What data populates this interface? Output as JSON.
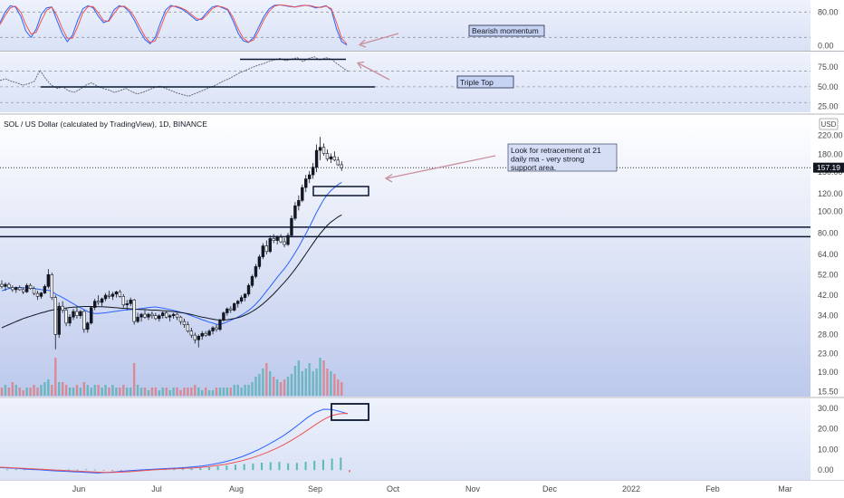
{
  "chart_data": [
    {
      "panel": "stochastic_rsi",
      "type": "line",
      "y_axis_ticks": [
        "80.00",
        "0.00"
      ],
      "levels": [
        80,
        20
      ],
      "ylim": [
        -5,
        100
      ],
      "series": [
        {
          "color": "#2962ff",
          "values": [
            55,
            80,
            95,
            92,
            70,
            35,
            20,
            40,
            75,
            90,
            92,
            60,
            30,
            10,
            25,
            60,
            88,
            95,
            90,
            70,
            55,
            60,
            85,
            95,
            92,
            80,
            60,
            35,
            15,
            5,
            20,
            55,
            85,
            96,
            92,
            88,
            80,
            70,
            60,
            65,
            80,
            92,
            95,
            90,
            85,
            60,
            30,
            12,
            8,
            20,
            45,
            70,
            88,
            96,
            97,
            95,
            93,
            92,
            95,
            96,
            94,
            90,
            92,
            95,
            85,
            40,
            10,
            2
          ]
        },
        {
          "color": "#ef5350",
          "values": [
            50,
            72,
            90,
            94,
            80,
            50,
            28,
            32,
            60,
            84,
            92,
            72,
            42,
            18,
            18,
            45,
            78,
            93,
            93,
            78,
            60,
            58,
            76,
            92,
            94,
            85,
            68,
            45,
            22,
            8,
            12,
            42,
            75,
            93,
            94,
            90,
            84,
            74,
            64,
            62,
            74,
            88,
            94,
            92,
            87,
            68,
            40,
            18,
            9,
            14,
            36,
            62,
            82,
            94,
            97,
            96,
            94,
            92,
            94,
            96,
            95,
            92,
            91,
            94,
            88,
            55,
            18,
            4
          ]
        }
      ],
      "annotation": "Bearish momentum"
    },
    {
      "panel": "rsi",
      "type": "line",
      "y_axis_ticks": [
        "75.00",
        "50.00",
        "25.00"
      ],
      "levels": [
        70,
        50,
        30
      ],
      "ylim": [
        20,
        90
      ],
      "series": [
        {
          "color": "#5d606b",
          "values": [
            58,
            60,
            57,
            55,
            52,
            54,
            57,
            71,
            60,
            52,
            48,
            50,
            45,
            43,
            47,
            52,
            55,
            51,
            48,
            46,
            43,
            45,
            48,
            44,
            41,
            43,
            46,
            49,
            51,
            48,
            45,
            42,
            40,
            38,
            41,
            44,
            47,
            50,
            53,
            57,
            60,
            64,
            68,
            71,
            74,
            77,
            79,
            82,
            84,
            86,
            83,
            85,
            87,
            82,
            86,
            88,
            84,
            87,
            85,
            79,
            74,
            69
          ]
        }
      ],
      "annotation": "Triple Top"
    },
    {
      "panel": "price",
      "type": "candlestick",
      "title": "SOL / US Dollar (calculated by TradingView), 1D, BINANCE",
      "scale": "log",
      "ylim": [
        15,
        240
      ],
      "y_axis_ticks": [
        "220.00",
        "180.00",
        "150.00",
        "120.00",
        "100.00",
        "80.00",
        "64.00",
        "52.00",
        "42.00",
        "34.00",
        "28.00",
        "23.00",
        "19.00",
        "15.50"
      ],
      "currency_label": "USD",
      "last_price": "157.19",
      "last_price_color": "#131722",
      "horizontal_levels": [
        85,
        77
      ],
      "annotation": "Look for retracement at 21 daily ma - very strong support area.",
      "ohlc": [
        [
          47,
          49,
          45,
          46
        ],
        [
          46,
          48,
          44,
          47
        ],
        [
          47,
          48,
          45,
          45.5
        ],
        [
          45.5,
          46.5,
          43.5,
          44.5
        ],
        [
          44.5,
          46,
          43,
          45.5
        ],
        [
          45.5,
          46.5,
          44,
          44.5
        ],
        [
          44.5,
          45.5,
          42.5,
          43.5
        ],
        [
          43.5,
          47.5,
          43,
          46.5
        ],
        [
          46.5,
          47.5,
          44.5,
          45
        ],
        [
          45,
          46,
          42,
          42.8
        ],
        [
          42.8,
          44,
          40,
          41.5
        ],
        [
          41.5,
          43.5,
          40.5,
          43
        ],
        [
          43,
          47,
          42.5,
          46
        ],
        [
          46,
          55,
          45,
          52
        ],
        [
          52,
          53,
          40,
          41
        ],
        [
          41,
          42,
          24,
          28
        ],
        [
          28,
          39,
          27,
          37.5
        ],
        [
          37.5,
          39.5,
          35,
          36
        ],
        [
          36,
          37,
          30.5,
          31.5
        ],
        [
          31.5,
          34.5,
          30.5,
          33.5
        ],
        [
          33.5,
          36.5,
          32.5,
          35.5
        ],
        [
          35.5,
          37,
          33,
          34
        ],
        [
          34,
          36,
          33,
          35.5
        ],
        [
          35.5,
          36,
          28.5,
          29.5
        ],
        [
          29.5,
          32,
          28.5,
          31.5
        ],
        [
          31.5,
          37.5,
          31,
          37
        ],
        [
          37,
          40.5,
          36,
          39.5
        ],
        [
          39.5,
          42,
          38,
          39
        ],
        [
          39,
          41,
          37.5,
          40.5
        ],
        [
          40.5,
          43,
          39.5,
          42
        ],
        [
          42,
          44,
          40.5,
          41.5
        ],
        [
          41.5,
          43.5,
          40,
          42.5
        ],
        [
          42.5,
          44,
          41,
          43.5
        ],
        [
          43.5,
          44.5,
          41,
          41.5
        ],
        [
          41.5,
          42.5,
          37,
          38
        ],
        [
          38,
          40,
          36,
          38.5
        ],
        [
          38.5,
          41,
          37.5,
          40
        ],
        [
          40,
          40.5,
          31,
          32
        ],
        [
          32,
          35,
          31.5,
          33.5
        ],
        [
          33.5,
          35,
          32,
          34.5
        ],
        [
          34.5,
          36,
          33,
          33.5
        ],
        [
          33.5,
          35,
          32.5,
          34.5
        ],
        [
          34.5,
          35.5,
          33,
          34
        ],
        [
          34,
          35,
          32.5,
          33
        ],
        [
          33,
          34.5,
          32,
          34
        ],
        [
          34,
          35.5,
          33,
          35
        ],
        [
          35,
          35.5,
          33,
          33.5
        ],
        [
          33.5,
          34.5,
          32,
          34
        ],
        [
          34,
          35,
          33,
          34.5
        ],
        [
          34.5,
          35,
          32.5,
          33.5
        ],
        [
          33.5,
          34,
          31,
          32
        ],
        [
          32,
          33,
          30,
          31
        ],
        [
          31,
          32,
          28.5,
          29
        ],
        [
          29,
          30,
          27,
          27.8
        ],
        [
          27.8,
          28.5,
          25.5,
          26.5
        ],
        [
          26.5,
          28,
          24.5,
          27.5
        ],
        [
          27.5,
          29,
          26.5,
          28.3
        ],
        [
          28.3,
          29,
          27.3,
          27.8
        ],
        [
          27.8,
          29.5,
          27.5,
          29
        ],
        [
          29,
          30.5,
          28,
          30
        ],
        [
          30,
          31,
          28.8,
          29.5
        ],
        [
          29.5,
          33,
          29,
          32.5
        ],
        [
          32.5,
          35.5,
          32,
          35
        ],
        [
          35,
          37,
          34,
          36.5
        ],
        [
          36.5,
          37.5,
          35,
          36
        ],
        [
          36,
          39,
          35.5,
          38.5
        ],
        [
          38.5,
          40,
          37,
          39.5
        ],
        [
          39.5,
          42,
          38.5,
          41
        ],
        [
          41,
          43,
          39.5,
          42.5
        ],
        [
          42.5,
          47.5,
          41.5,
          46.5
        ],
        [
          46.5,
          52,
          45.5,
          51
        ],
        [
          51,
          58,
          50,
          56.5
        ],
        [
          56.5,
          64,
          55,
          62.5
        ],
        [
          62.5,
          72,
          61,
          70
        ],
        [
          70,
          74,
          64,
          66
        ],
        [
          66,
          78,
          65,
          75.5
        ],
        [
          75.5,
          79,
          72,
          74
        ],
        [
          74,
          78,
          71,
          76.5
        ],
        [
          76.5,
          79,
          72,
          73
        ],
        [
          73,
          76,
          69,
          71
        ],
        [
          71,
          80,
          70,
          78
        ],
        [
          78,
          96,
          77,
          93
        ],
        [
          93,
          110,
          91,
          106
        ],
        [
          106,
          118,
          101,
          112
        ],
        [
          112,
          132,
          110,
          128
        ],
        [
          128,
          146,
          122,
          140
        ],
        [
          140,
          152,
          134,
          146
        ],
        [
          146,
          165,
          140,
          158
        ],
        [
          158,
          200,
          150,
          188
        ],
        [
          188,
          216,
          170,
          194
        ],
        [
          194,
          202,
          178,
          182
        ],
        [
          182,
          190,
          168,
          172
        ],
        [
          172,
          182,
          165,
          176
        ],
        [
          176,
          186,
          168,
          170
        ],
        [
          170,
          176,
          160,
          162
        ],
        [
          162,
          168,
          152,
          157.19
        ]
      ],
      "volume": [
        3,
        4,
        3,
        5,
        4,
        3,
        2,
        3,
        3,
        4,
        3,
        4,
        5,
        6,
        4,
        14,
        5,
        5,
        4,
        3,
        3,
        4,
        3,
        5,
        4,
        3,
        4,
        4,
        3,
        4,
        3,
        4,
        3,
        3,
        4,
        3,
        3,
        12,
        4,
        3,
        3,
        2,
        3,
        3,
        2,
        3,
        3,
        2,
        3,
        3,
        2,
        3,
        3,
        3,
        4,
        3,
        2,
        3,
        2,
        2,
        3,
        3,
        3,
        3,
        3,
        4,
        4,
        3,
        4,
        4,
        5,
        7,
        8,
        10,
        12,
        9,
        7,
        6,
        5,
        6,
        7,
        8,
        11,
        13,
        9,
        10,
        12,
        9,
        10,
        14,
        13,
        10,
        9,
        8,
        6,
        5
      ],
      "moving_averages": [
        {
          "color": "#2962ff",
          "values": [
            44,
            44.5,
            45,
            45.2,
            45.4,
            45.5,
            45.4,
            45.3,
            45.2,
            45,
            44.8,
            44.5,
            44.3,
            44.2,
            43.8,
            42.5,
            41.8,
            41,
            40.2,
            39.3,
            38.5,
            37.6,
            36.9,
            36.2,
            35.5,
            35,
            34.8,
            34.8,
            34.9,
            35,
            35.2,
            35.4,
            35.6,
            35.8,
            36,
            36.1,
            36.2,
            36.3,
            36.4,
            36.6,
            36.8,
            37,
            37.1,
            37.2,
            37,
            36.8,
            36.5,
            36.2,
            35.9,
            35.6,
            35.2,
            34.9,
            34.5,
            34,
            33.5,
            33.1,
            32.6,
            32.2,
            31.8,
            31.5,
            31.1,
            31.1,
            31.4,
            31.9,
            32.4,
            32.9,
            33.5,
            34.2,
            35,
            35.9,
            37,
            38.3,
            39.9,
            41.8,
            43.8,
            45.9,
            48.2,
            50.6,
            52.9,
            55.3,
            58.1,
            61.4,
            65.2,
            69.4,
            74.2,
            79.4,
            85.2,
            91.8,
            99,
            106,
            113,
            119,
            124,
            128,
            132,
            135
          ]
        },
        {
          "color": "#131722",
          "values": [
            30,
            30.5,
            31,
            31.5,
            32,
            32.5,
            33,
            33.4,
            33.8,
            34.2,
            34.6,
            35,
            35.3,
            35.7,
            36,
            36.2,
            36.4,
            36.6,
            36.8,
            37,
            37.1,
            37.2,
            37.3,
            37.4,
            37.4,
            37.4,
            37.4,
            37.3,
            37.3,
            37.2,
            37.1,
            37,
            36.9,
            36.8,
            36.7,
            36.6,
            36.5,
            36.4,
            36.3,
            36.2,
            36.2,
            36.1,
            36,
            36,
            35.9,
            35.8,
            35.7,
            35.6,
            35.5,
            35.3,
            35.1,
            34.9,
            34.7,
            34.4,
            34.1,
            33.8,
            33.5,
            33.3,
            33,
            32.8,
            32.6,
            32.5,
            32.5,
            32.6,
            32.8,
            33,
            33.3,
            33.7,
            34.2,
            34.8,
            35.5,
            36.3,
            37.3,
            38.4,
            39.7,
            41.1,
            42.6,
            44.3,
            46.1,
            48,
            50.1,
            52.4,
            55,
            57.9,
            61,
            64.4,
            68,
            71.8,
            75.7,
            79.5,
            83,
            86.5,
            89.5,
            92,
            94.5,
            96.5
          ]
        }
      ]
    },
    {
      "panel": "macd",
      "type": "line",
      "y_axis_ticks": [
        "30.00",
        "20.00",
        "10.00",
        "0.00"
      ],
      "ylim": [
        -3,
        33
      ],
      "series": [
        {
          "color": "#2962ff",
          "values": [
            1.2,
            1,
            0.8,
            0.5,
            0.3,
            0.1,
            -0.2,
            -0.4,
            -0.6,
            -0.8,
            -1,
            -1.2,
            -1.4,
            -1.2,
            -1,
            -0.6,
            -0.3,
            0,
            0.2,
            0.4,
            0.6,
            0.8,
            1,
            1.3,
            1.6,
            2,
            2.6,
            3.3,
            4.2,
            5.3,
            6.6,
            8.2,
            10,
            12,
            14.2,
            16.6,
            19.3,
            22.3,
            25.4,
            28,
            29.5,
            29.4,
            28.5,
            27.3
          ]
        },
        {
          "color": "#ef5350",
          "values": [
            1.4,
            1.2,
            1,
            0.8,
            0.6,
            0.4,
            0.2,
            0,
            -0.2,
            -0.4,
            -0.6,
            -0.8,
            -1,
            -1.1,
            -1.1,
            -1,
            -0.8,
            -0.5,
            -0.2,
            0.1,
            0.3,
            0.5,
            0.7,
            0.9,
            1.1,
            1.4,
            1.8,
            2.3,
            2.9,
            3.7,
            4.6,
            5.7,
            7,
            8.5,
            10.2,
            12.1,
            14.3,
            16.7,
            19.3,
            22,
            24.5,
            26.4,
            27.3,
            27.5
          ]
        }
      ],
      "histogram": [
        0.3,
        0.5,
        0.4,
        0.7,
        0.6,
        0.3,
        0.2,
        0.3,
        0.2,
        0.4,
        0.2,
        -0.3,
        -0.6,
        -0.4,
        -0.3,
        0.2,
        0.4,
        0.6,
        0.8,
        1,
        1.1,
        1.2,
        1.4,
        1.5,
        1.8,
        2.2,
        2.6,
        2.9,
        3.2,
        3.6,
        3.8,
        4,
        3.3,
        3.5,
        4,
        4.5,
        5,
        5.6,
        6.1,
        -1
      ]
    }
  ],
  "x_axis_labels": [
    "Jun",
    "Jul",
    "Aug",
    "Sep",
    "Oct",
    "Nov",
    "Dec",
    "2022",
    "Feb",
    "Mar"
  ],
  "colors": {
    "up": "#131722",
    "down": "#ffffff",
    "volume_up": "#26a69a",
    "volume_down": "#ef5350",
    "arrow": "#c9909c",
    "box": "#0a1b3d",
    "axis_text": "#4a4a4a"
  }
}
